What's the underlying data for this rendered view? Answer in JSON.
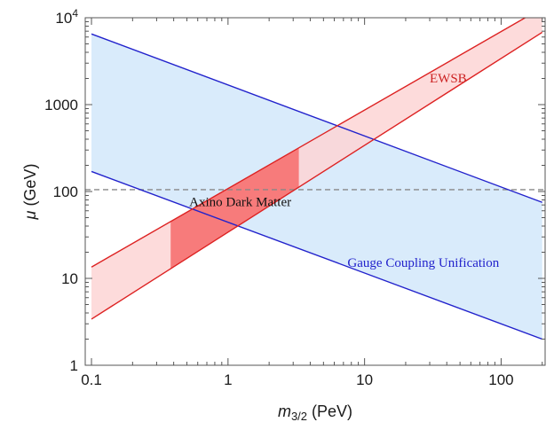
{
  "chart_data": {
    "type": "area",
    "xlabel": {
      "symbol": "m",
      "sub": "3/2",
      "unit": " (PeV)"
    },
    "ylabel": {
      "symbol": "μ",
      "unit": " (GeV)"
    },
    "x_scale": "log",
    "y_scale": "log",
    "xlim": [
      0.09,
      210
    ],
    "ylim": [
      1,
      10000
    ],
    "x_ticks": [
      {
        "value": 0.1,
        "label": "0.1"
      },
      {
        "value": 1,
        "label": "1"
      },
      {
        "value": 10,
        "label": "10"
      },
      {
        "value": 100,
        "label": "100"
      }
    ],
    "y_ticks": [
      {
        "value": 1,
        "label": "1",
        "sup": ""
      },
      {
        "value": 10,
        "label": "10",
        "sup": ""
      },
      {
        "value": 100,
        "label": "100",
        "sup": ""
      },
      {
        "value": 1000,
        "label": "1000",
        "sup": ""
      },
      {
        "value": 10000,
        "label": "10",
        "sup": "4"
      }
    ],
    "grid": false,
    "series": [
      {
        "name": "Gauge Coupling Unification",
        "kind": "band",
        "color": "#2222cc",
        "fill": "#d9ebfb",
        "upper": {
          "x": [
            0.1,
            200
          ],
          "y": [
            6500,
            75
          ]
        },
        "lower": {
          "x": [
            0.1,
            200
          ],
          "y": [
            170,
            2
          ]
        }
      },
      {
        "name": "EWSB",
        "kind": "band",
        "color": "#dd2222",
        "fill": "#fdd5d5",
        "upper": {
          "x": [
            0.1,
            150
          ],
          "y": [
            13.5,
            10000
          ]
        },
        "lower": {
          "x": [
            0.1,
            200
          ],
          "y": [
            3.4,
            6800
          ]
        }
      },
      {
        "name": "Axino Dark Matter",
        "kind": "region",
        "fill": "#f77b7b",
        "xrange": [
          0.38,
          3.3
        ]
      }
    ],
    "reference_lines": [
      {
        "axis": "y",
        "value": 105,
        "style": "dashed",
        "color": "#888888"
      }
    ],
    "annotations": [
      {
        "text": "EWSB",
        "x": 30,
        "y": 1800,
        "color": "#cc2222"
      },
      {
        "text": "Axino Dark Matter",
        "x": 0.52,
        "y": 68,
        "color": "#111111"
      },
      {
        "text": "Gauge Coupling Unification",
        "x": 7.5,
        "y": 13.5,
        "color": "#2222cc"
      }
    ]
  }
}
